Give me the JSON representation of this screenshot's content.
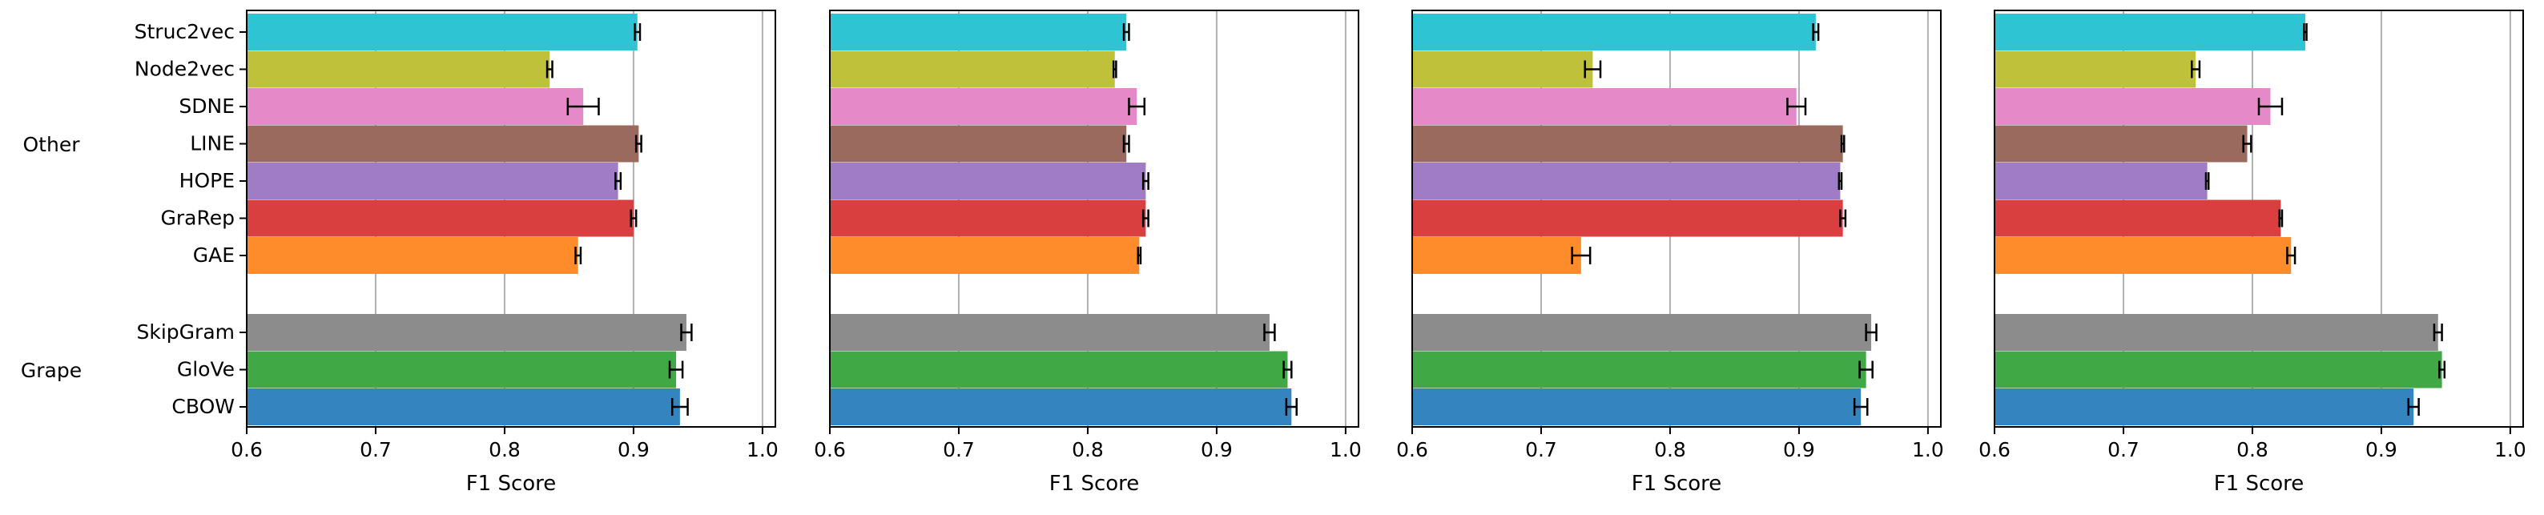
{
  "chart_data": {
    "type": "bar",
    "orientation": "horizontal",
    "xlabel": "F1 Score",
    "xlim": [
      0.6,
      1.01
    ],
    "xticks": [
      "0.6",
      "0.7",
      "0.8",
      "0.9",
      "1.0"
    ],
    "grid": "vertical",
    "error_bars": true,
    "groups": [
      {
        "name": "Other",
        "categories": [
          "Struc2vec",
          "Node2vec",
          "SDNE",
          "LINE",
          "HOPE",
          "GraRep",
          "GAE"
        ]
      },
      {
        "name": "Grape",
        "categories": [
          "SkipGram",
          "GloVe",
          "CBOW"
        ]
      }
    ],
    "categories": [
      "Struc2vec",
      "Node2vec",
      "SDNE",
      "LINE",
      "HOPE",
      "GraRep",
      "GAE",
      "SkipGram",
      "GloVe",
      "CBOW"
    ],
    "colors": {
      "Struc2vec": "#2ec4d4",
      "Node2vec": "#bfc13a",
      "SDNE": "#e589c9",
      "LINE": "#9b6a5e",
      "HOPE": "#a07cc6",
      "GraRep": "#d93f3f",
      "GAE": "#ff8c2a",
      "SkipGram": "#8c8c8c",
      "GloVe": "#40a844",
      "CBOW": "#3484c0"
    },
    "panels": [
      {
        "values": [
          0.903,
          0.835,
          0.861,
          0.904,
          0.888,
          0.9,
          0.857,
          0.941,
          0.933,
          0.936
        ],
        "errors": [
          0.002,
          0.002,
          0.012,
          0.002,
          0.002,
          0.002,
          0.002,
          0.004,
          0.005,
          0.006
        ]
      },
      {
        "values": [
          0.83,
          0.821,
          0.838,
          0.83,
          0.845,
          0.845,
          0.84,
          0.941,
          0.955,
          0.958
        ],
        "errors": [
          0.002,
          0.001,
          0.006,
          0.002,
          0.002,
          0.002,
          0.001,
          0.004,
          0.003,
          0.004
        ]
      },
      {
        "values": [
          0.913,
          0.74,
          0.898,
          0.934,
          0.932,
          0.934,
          0.731,
          0.956,
          0.952,
          0.948
        ],
        "errors": [
          0.002,
          0.006,
          0.007,
          0.001,
          0.001,
          0.002,
          0.007,
          0.004,
          0.005,
          0.005
        ]
      },
      {
        "values": [
          0.841,
          0.756,
          0.814,
          0.796,
          0.765,
          0.822,
          0.83,
          0.944,
          0.947,
          0.925
        ],
        "errors": [
          0.001,
          0.003,
          0.009,
          0.003,
          0.001,
          0.001,
          0.003,
          0.003,
          0.002,
          0.004
        ]
      }
    ]
  }
}
